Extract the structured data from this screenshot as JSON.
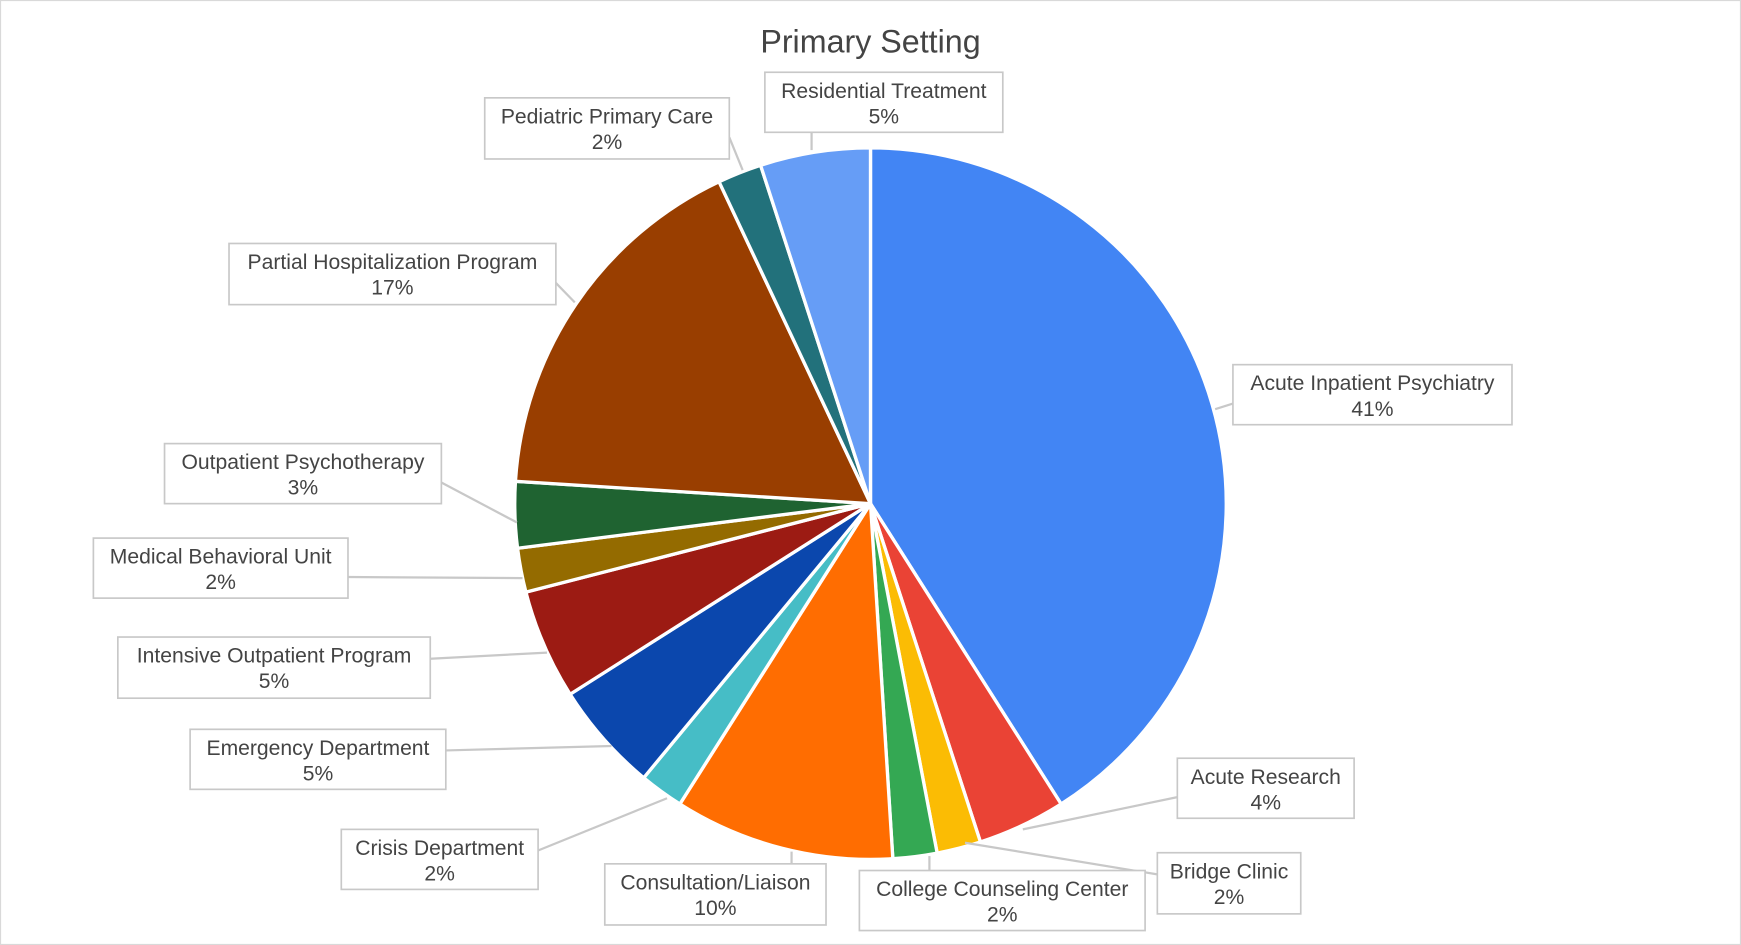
{
  "chart_data": {
    "type": "pie",
    "title": "Primary Setting",
    "start": "top, clockwise",
    "slices": [
      {
        "label": "Acute Inpatient Psychiatry",
        "value": 41,
        "display": "41%",
        "color": "#4285f4"
      },
      {
        "label": "Acute Research",
        "value": 4,
        "display": "4%",
        "color": "#ea4335"
      },
      {
        "label": "Bridge Clinic",
        "value": 2,
        "display": "2%",
        "color": "#fbbc04"
      },
      {
        "label": "College Counseling Center",
        "value": 2,
        "display": "2%",
        "color": "#34a853"
      },
      {
        "label": "Consultation/Liaison",
        "value": 10,
        "display": "10%",
        "color": "#ff6d01"
      },
      {
        "label": "Crisis Department",
        "value": 2,
        "display": "2%",
        "color": "#46bdc6"
      },
      {
        "label": "Emergency Department",
        "value": 5,
        "display": "5%",
        "color": "#0b47ad"
      },
      {
        "label": "Intensive Outpatient Program",
        "value": 5,
        "display": "5%",
        "color": "#9c1b13"
      },
      {
        "label": "Medical Behavioral Unit",
        "value": 2,
        "display": "2%",
        "color": "#946b00"
      },
      {
        "label": "Outpatient Psychotherapy",
        "value": 3,
        "display": "3%",
        "color": "#1f6331"
      },
      {
        "label": "Partial Hospitalization Program",
        "value": 17,
        "display": "17%",
        "color": "#993e00"
      },
      {
        "label": "Pediatric Primary Care",
        "value": 2,
        "display": "2%",
        "color": "#22717b"
      },
      {
        "label": "Residential Treatment",
        "value": 5,
        "display": "5%",
        "color": "#669df6"
      }
    ]
  }
}
